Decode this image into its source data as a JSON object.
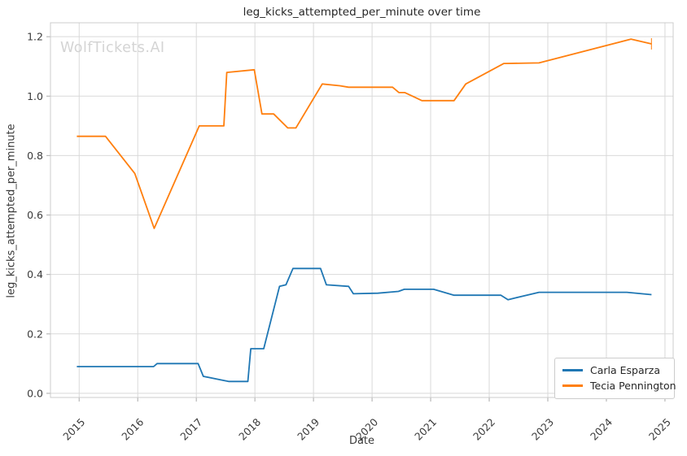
{
  "watermark": "WolfTickets.AI",
  "chart_data": {
    "type": "line",
    "title": "leg_kicks_attempted_per_minute over time",
    "xlabel": "Date",
    "ylabel": "leg_kicks_attempted_per_minute",
    "grid": true,
    "legend_position": "lower right",
    "xlim": [
      2014.51,
      2025.14
    ],
    "ylim": [
      -0.014,
      1.247
    ],
    "x_ticks": [
      {
        "v": 2015,
        "label": "2015"
      },
      {
        "v": 2016,
        "label": "2016"
      },
      {
        "v": 2017,
        "label": "2017"
      },
      {
        "v": 2018,
        "label": "2018"
      },
      {
        "v": 2019,
        "label": "2019"
      },
      {
        "v": 2020,
        "label": "2020"
      },
      {
        "v": 2021,
        "label": "2021"
      },
      {
        "v": 2022,
        "label": "2022"
      },
      {
        "v": 2023,
        "label": "2023"
      },
      {
        "v": 2024,
        "label": "2024"
      },
      {
        "v": 2025,
        "label": "2025"
      }
    ],
    "y_ticks": [
      {
        "v": 0.0,
        "label": "0.0"
      },
      {
        "v": 0.2,
        "label": "0.2"
      },
      {
        "v": 0.4,
        "label": "0.4"
      },
      {
        "v": 0.6,
        "label": "0.6"
      },
      {
        "v": 0.8,
        "label": "0.8"
      },
      {
        "v": 1.0,
        "label": "1.0"
      },
      {
        "v": 1.2,
        "label": "1.2"
      }
    ],
    "series": [
      {
        "name": "Carla Esparza",
        "color": "#1f77b4",
        "end_cap": false,
        "points": [
          [
            2014.96,
            0.09
          ],
          [
            2016.27,
            0.09
          ],
          [
            2016.33,
            0.1
          ],
          [
            2017.03,
            0.1
          ],
          [
            2017.12,
            0.057
          ],
          [
            2017.42,
            0.045
          ],
          [
            2017.55,
            0.04
          ],
          [
            2017.88,
            0.04
          ],
          [
            2017.93,
            0.15
          ],
          [
            2018.15,
            0.15
          ],
          [
            2018.42,
            0.36
          ],
          [
            2018.53,
            0.365
          ],
          [
            2018.65,
            0.42
          ],
          [
            2019.12,
            0.42
          ],
          [
            2019.22,
            0.365
          ],
          [
            2019.6,
            0.36
          ],
          [
            2019.68,
            0.335
          ],
          [
            2020.1,
            0.337
          ],
          [
            2020.45,
            0.343
          ],
          [
            2020.55,
            0.35
          ],
          [
            2021.05,
            0.35
          ],
          [
            2021.4,
            0.33
          ],
          [
            2022.2,
            0.33
          ],
          [
            2022.32,
            0.315
          ],
          [
            2022.85,
            0.34
          ],
          [
            2024.35,
            0.34
          ],
          [
            2024.77,
            0.332
          ]
        ]
      },
      {
        "name": "Tecia Pennington",
        "color": "#ff7f0e",
        "end_cap": true,
        "points": [
          [
            2014.96,
            0.865
          ],
          [
            2015.45,
            0.865
          ],
          [
            2015.95,
            0.74
          ],
          [
            2016.28,
            0.555
          ],
          [
            2017.05,
            0.9
          ],
          [
            2017.47,
            0.9
          ],
          [
            2017.52,
            1.08
          ],
          [
            2017.99,
            1.089
          ],
          [
            2018.12,
            0.94
          ],
          [
            2018.32,
            0.94
          ],
          [
            2018.56,
            0.893
          ],
          [
            2018.7,
            0.893
          ],
          [
            2019.15,
            1.041
          ],
          [
            2019.45,
            1.035
          ],
          [
            2019.6,
            1.03
          ],
          [
            2020.35,
            1.03
          ],
          [
            2020.46,
            1.012
          ],
          [
            2020.56,
            1.012
          ],
          [
            2020.85,
            0.985
          ],
          [
            2021.4,
            0.985
          ],
          [
            2021.6,
            1.041
          ],
          [
            2022.25,
            1.11
          ],
          [
            2022.85,
            1.112
          ],
          [
            2024.42,
            1.192
          ],
          [
            2024.77,
            1.176
          ]
        ]
      }
    ]
  },
  "style": {
    "grid_color": "#d9d9d9",
    "spine_color": "#cccccc",
    "tick_color": "#b8b8b8",
    "background": "#ffffff"
  }
}
